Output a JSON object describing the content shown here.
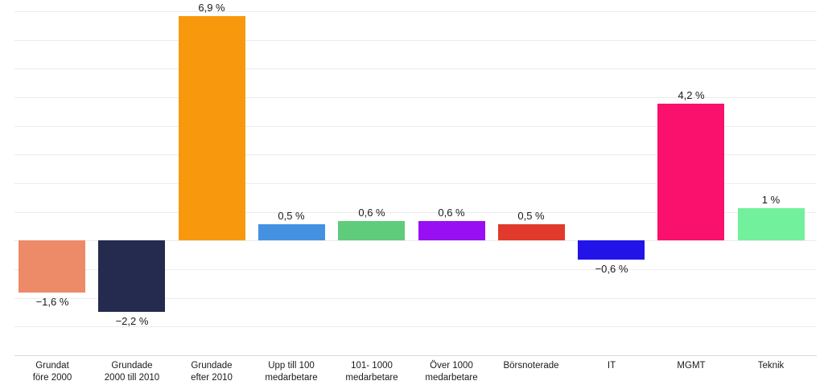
{
  "chart_data": {
    "type": "bar",
    "categories": [
      [
        "Grundat",
        "före 2000"
      ],
      [
        "Grundade",
        "2000 till 2010"
      ],
      [
        "Grundade",
        "efter 2010"
      ],
      [
        "Upp till 100",
        "medarbetare"
      ],
      [
        "101- 1000",
        "medarbetare"
      ],
      [
        "Över 1000",
        "medarbetare"
      ],
      [
        "Börsnoterade"
      ],
      [
        "IT"
      ],
      [
        "MGMT"
      ],
      [
        "Teknik"
      ]
    ],
    "values": [
      -1.6,
      -2.2,
      6.9,
      0.5,
      0.6,
      0.6,
      0.5,
      -0.6,
      4.2,
      1
    ],
    "value_labels": [
      "−1,6 %",
      "−2,2 %",
      "6,9 %",
      "0,5 %",
      "0,6 %",
      "0,6 %",
      "0,5 %",
      "−0,6 %",
      "4,2 %",
      "1 %"
    ],
    "bar_colors": [
      "#ED8A68",
      "#242B4F",
      "#F8990D",
      "#4491E1",
      "#5FCC7C",
      "#990FF4",
      "#E13A2C",
      "#2214E9",
      "#FA106D",
      "#73F09B"
    ],
    "title": "",
    "xlabel": "",
    "ylabel": "",
    "ylim": [
      -3.6,
      7.4
    ],
    "grid": true,
    "legend": false,
    "text_color": "#1a1a1a",
    "gridline_color": "#ececec",
    "axis_line_color": "#d9d9d9"
  }
}
